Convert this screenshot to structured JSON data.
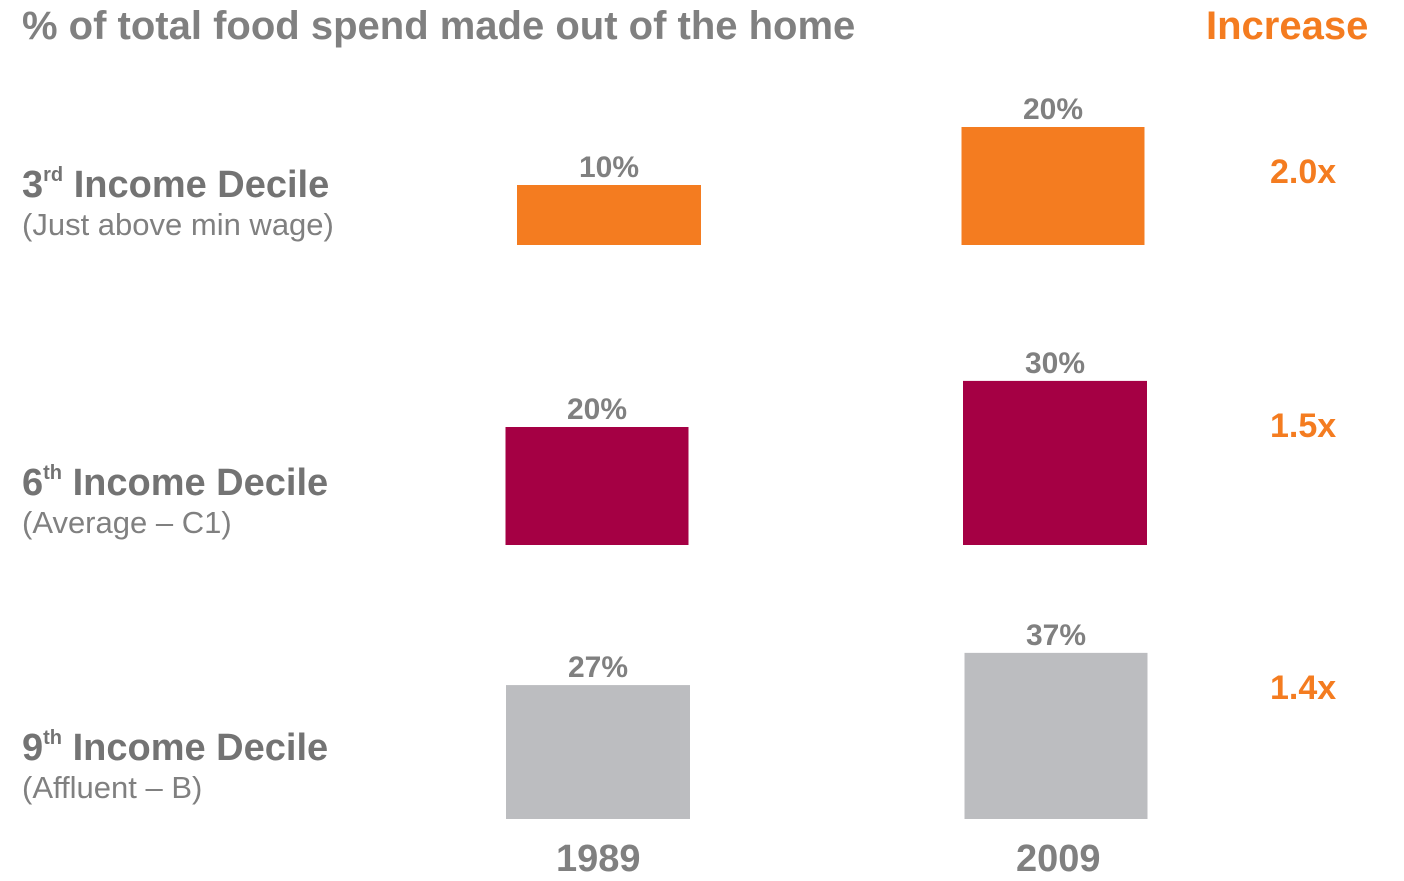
{
  "title": "% of total food spend made out of the home",
  "increase_header": "Increase",
  "rows": [
    {
      "ord": "3",
      "sup": "rd",
      "name": " Income Decile",
      "sub": "(Just above min wage)",
      "increase": "2.0x"
    },
    {
      "ord": "6",
      "sup": "th",
      "name": " Income Decile",
      "sub": "(Average – C1)",
      "increase": "1.5x"
    },
    {
      "ord": "9",
      "sup": "th",
      "name": " Income Decile",
      "sub": "(Affluent – B)",
      "increase": "1.4x"
    }
  ],
  "years": [
    "1989",
    "2009"
  ],
  "colors": {
    "orange": "#f47c20",
    "crimson": "#a50044",
    "grey": "#bcbdc0",
    "label": "#808080"
  },
  "chart_data": {
    "type": "bar",
    "title": "% of total food spend made out of the home",
    "categories": [
      "1989",
      "2009"
    ],
    "series": [
      {
        "name": "3rd Income Decile",
        "values": [
          10,
          20
        ],
        "labels": [
          "10%",
          "20%"
        ],
        "color": "#f47c20"
      },
      {
        "name": "6th Income Decile",
        "values": [
          20,
          30
        ],
        "labels": [
          "20%",
          "30%"
        ],
        "color": "#a50044"
      },
      {
        "name": "9th Income Decile",
        "values": [
          27,
          37
        ],
        "labels": [
          "27%",
          "37%"
        ],
        "color": "#bcbdc0"
      }
    ],
    "increase": [
      "2.0x",
      "1.5x",
      "1.4x"
    ],
    "grid": false
  }
}
